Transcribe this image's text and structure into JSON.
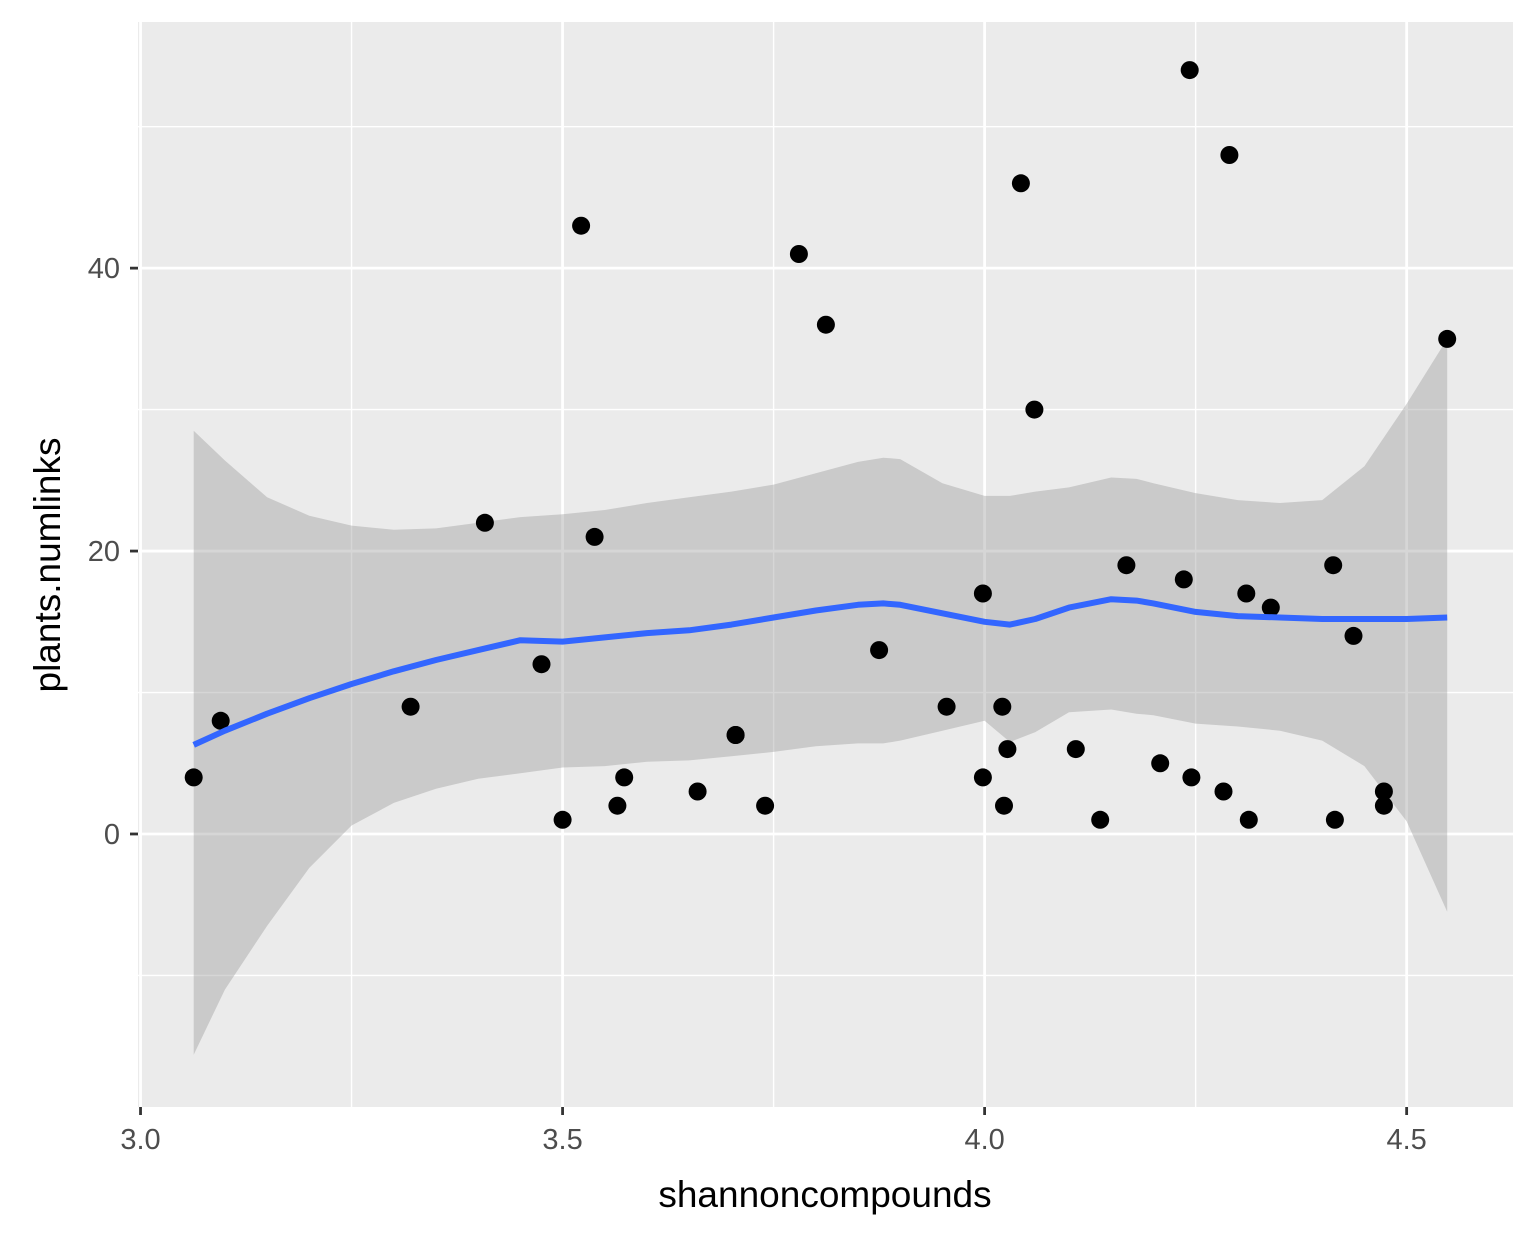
{
  "chart_data": {
    "type": "scatter",
    "title": "",
    "xlabel": "shannoncompounds",
    "ylabel": "plants.numlinks",
    "xlim": [
      2.997,
      4.626
    ],
    "ylim": [
      -19.3,
      57.4
    ],
    "x_ticks": [
      3.0,
      3.5,
      4.0,
      4.5
    ],
    "x_tick_labels": [
      "3.0",
      "3.5",
      "4.0",
      "4.5"
    ],
    "y_ticks": [
      0,
      20,
      40
    ],
    "y_tick_labels": [
      "0",
      "20",
      "40"
    ],
    "grid": true,
    "colors": {
      "panel": "#ebebeb",
      "grid": "#ffffff",
      "points": "#000000",
      "smooth_line": "#3366ff",
      "ribbon": "#999999"
    },
    "points": [
      {
        "x": 3.063,
        "y": 4
      },
      {
        "x": 3.095,
        "y": 8
      },
      {
        "x": 3.32,
        "y": 9
      },
      {
        "x": 3.408,
        "y": 22
      },
      {
        "x": 3.475,
        "y": 12
      },
      {
        "x": 3.5,
        "y": 1
      },
      {
        "x": 3.522,
        "y": 43
      },
      {
        "x": 3.538,
        "y": 21
      },
      {
        "x": 3.565,
        "y": 2
      },
      {
        "x": 3.573,
        "y": 4
      },
      {
        "x": 3.66,
        "y": 3
      },
      {
        "x": 3.705,
        "y": 7
      },
      {
        "x": 3.705,
        "y": 7
      },
      {
        "x": 3.74,
        "y": 2
      },
      {
        "x": 3.78,
        "y": 41
      },
      {
        "x": 3.812,
        "y": 36
      },
      {
        "x": 3.875,
        "y": 13
      },
      {
        "x": 3.955,
        "y": 9
      },
      {
        "x": 3.998,
        "y": 17
      },
      {
        "x": 3.998,
        "y": 4
      },
      {
        "x": 4.021,
        "y": 9
      },
      {
        "x": 4.023,
        "y": 2
      },
      {
        "x": 4.027,
        "y": 6
      },
      {
        "x": 4.043,
        "y": 46
      },
      {
        "x": 4.059,
        "y": 30
      },
      {
        "x": 4.108,
        "y": 6
      },
      {
        "x": 4.137,
        "y": 1
      },
      {
        "x": 4.168,
        "y": 19
      },
      {
        "x": 4.208,
        "y": 5
      },
      {
        "x": 4.236,
        "y": 18
      },
      {
        "x": 4.243,
        "y": 54
      },
      {
        "x": 4.245,
        "y": 4
      },
      {
        "x": 4.283,
        "y": 3
      },
      {
        "x": 4.29,
        "y": 48
      },
      {
        "x": 4.31,
        "y": 17
      },
      {
        "x": 4.313,
        "y": 1
      },
      {
        "x": 4.339,
        "y": 16
      },
      {
        "x": 4.413,
        "y": 19
      },
      {
        "x": 4.415,
        "y": 1
      },
      {
        "x": 4.437,
        "y": 14
      },
      {
        "x": 4.473,
        "y": 3
      },
      {
        "x": 4.473,
        "y": 2
      },
      {
        "x": 4.548,
        "y": 35
      }
    ],
    "smooth": {
      "x": [
        3.063,
        3.1,
        3.15,
        3.2,
        3.25,
        3.3,
        3.35,
        3.4,
        3.45,
        3.5,
        3.55,
        3.6,
        3.65,
        3.7,
        3.75,
        3.8,
        3.85,
        3.88,
        3.9,
        3.95,
        4.0,
        4.03,
        4.06,
        4.1,
        4.15,
        4.18,
        4.2,
        4.25,
        4.3,
        4.35,
        4.4,
        4.45,
        4.5,
        4.548
      ],
      "y": [
        6.3,
        7.3,
        8.5,
        9.6,
        10.6,
        11.5,
        12.3,
        13.0,
        13.7,
        13.6,
        13.9,
        14.2,
        14.4,
        14.8,
        15.3,
        15.8,
        16.2,
        16.3,
        16.2,
        15.6,
        15.0,
        14.8,
        15.2,
        16.0,
        16.6,
        16.5,
        16.3,
        15.7,
        15.4,
        15.3,
        15.2,
        15.2,
        15.2,
        15.3
      ],
      "ymin": [
        -15.6,
        -11.0,
        -6.5,
        -2.4,
        0.6,
        2.2,
        3.2,
        3.9,
        4.3,
        4.7,
        4.8,
        5.1,
        5.2,
        5.5,
        5.8,
        6.2,
        6.4,
        6.4,
        6.6,
        7.3,
        8.0,
        6.5,
        7.2,
        8.6,
        8.8,
        8.5,
        8.4,
        7.8,
        7.6,
        7.3,
        6.6,
        4.8,
        0.9,
        -5.5
      ],
      "ymax": [
        28.5,
        26.4,
        23.8,
        22.5,
        21.8,
        21.5,
        21.6,
        22.0,
        22.4,
        22.6,
        22.9,
        23.4,
        23.8,
        24.2,
        24.7,
        25.5,
        26.3,
        26.6,
        26.5,
        24.8,
        23.9,
        23.9,
        24.2,
        24.5,
        25.2,
        25.1,
        24.8,
        24.1,
        23.6,
        23.4,
        23.6,
        26.0,
        30.4,
        35.0
      ]
    }
  }
}
